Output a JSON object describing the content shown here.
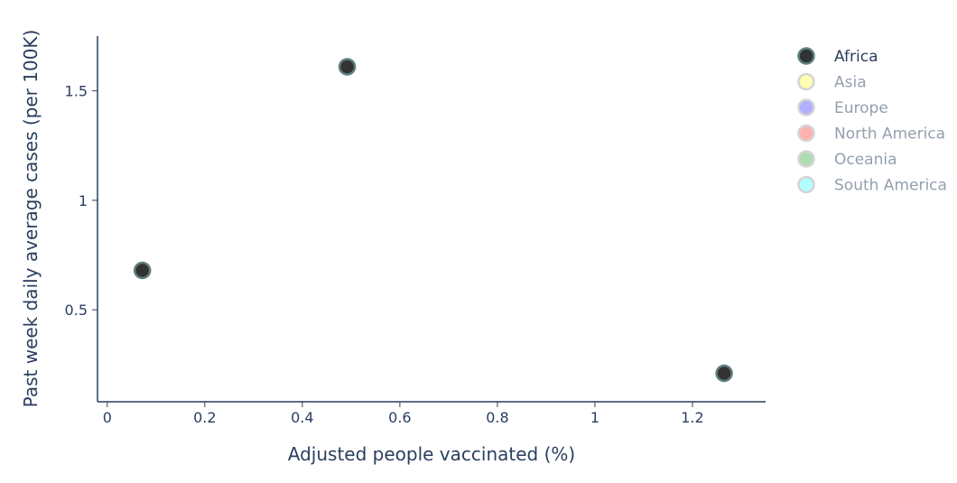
{
  "chart_data": {
    "type": "scatter",
    "xlabel": "Adjusted people vaccinated (%)",
    "ylabel": "Past week daily average cases (per 100K)",
    "xlim": [
      -0.02,
      1.35
    ],
    "ylim": [
      0.08,
      1.75
    ],
    "xticks": [
      0,
      0.2,
      0.4,
      0.6,
      0.8,
      1,
      1.2
    ],
    "xtick_labels": [
      "0",
      "0.2",
      "0.4",
      "0.6",
      "0.8",
      "1",
      "1.2"
    ],
    "yticks": [
      0.5,
      1,
      1.5
    ],
    "ytick_labels": [
      "0.5",
      "1",
      "1.5"
    ],
    "grid": false,
    "legend_position": "right",
    "series": [
      {
        "name": "Africa",
        "color": "#333333",
        "edge": "#5f7f7f",
        "active": true,
        "points": [
          {
            "x": 0.072,
            "y": 0.68
          },
          {
            "x": 0.492,
            "y": 1.61
          },
          {
            "x": 1.265,
            "y": 0.21
          }
        ]
      },
      {
        "name": "Asia",
        "color": "#ffff66",
        "edge": "#aaaaaa",
        "active": false,
        "points": []
      },
      {
        "name": "Europe",
        "color": "#6666ff",
        "edge": "#aaaaaa",
        "active": false,
        "points": []
      },
      {
        "name": "North America",
        "color": "#ff6666",
        "edge": "#aaaaaa",
        "active": false,
        "points": []
      },
      {
        "name": "Oceania",
        "color": "#66bb66",
        "edge": "#aaaaaa",
        "active": false,
        "points": []
      },
      {
        "name": "South America",
        "color": "#66ffff",
        "edge": "#aaaaaa",
        "active": false,
        "points": []
      }
    ]
  }
}
